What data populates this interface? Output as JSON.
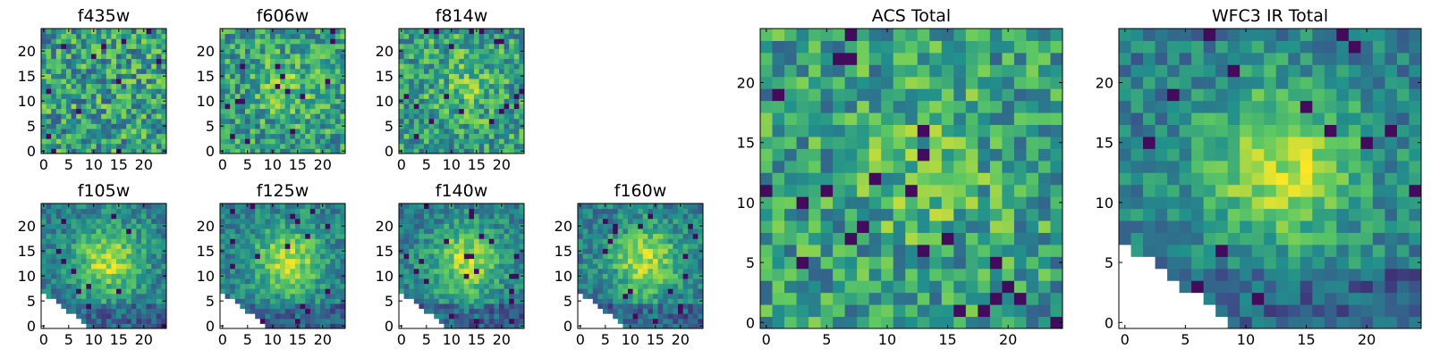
{
  "figure": {
    "colormap": [
      "#440154",
      "#3b528b",
      "#21918c",
      "#5ec962",
      "#fde725"
    ],
    "mask_color": "#ffffff"
  },
  "chart_data": [
    {
      "type": "heatmap",
      "title": "f435w",
      "x_ticks": [
        0,
        5,
        10,
        15,
        20
      ],
      "y_ticks": [
        0,
        5,
        10,
        15,
        20
      ],
      "xlim": [
        -0.5,
        24.5
      ],
      "ylim": [
        -0.5,
        24.5
      ],
      "grid_size": [
        25,
        25
      ],
      "pattern": "noise",
      "masked_corner": "none"
    },
    {
      "type": "heatmap",
      "title": "f606w",
      "x_ticks": [
        0,
        5,
        10,
        15,
        20
      ],
      "y_ticks": [
        0,
        5,
        10,
        15,
        20
      ],
      "xlim": [
        -0.5,
        24.5
      ],
      "ylim": [
        -0.5,
        24.5
      ],
      "grid_size": [
        25,
        25
      ],
      "pattern": "noise-with-faint-center",
      "masked_corner": "none"
    },
    {
      "type": "heatmap",
      "title": "f814w",
      "x_ticks": [
        0,
        5,
        10,
        15,
        20
      ],
      "y_ticks": [
        0,
        5,
        10,
        15,
        20
      ],
      "xlim": [
        -0.5,
        24.5
      ],
      "ylim": [
        -0.5,
        24.5
      ],
      "grid_size": [
        25,
        25
      ],
      "pattern": "noise-with-faint-center",
      "masked_corner": "none"
    },
    {
      "type": "heatmap",
      "title": "f105w",
      "x_ticks": [
        0,
        5,
        10,
        15,
        20
      ],
      "y_ticks": [
        0,
        5,
        10,
        15,
        20
      ],
      "xlim": [
        -0.5,
        24.5
      ],
      "ylim": [
        -0.5,
        24.5
      ],
      "grid_size": [
        25,
        25
      ],
      "pattern": "central-source",
      "masked_corner": "bottom-left"
    },
    {
      "type": "heatmap",
      "title": "f125w",
      "x_ticks": [
        0,
        5,
        10,
        15,
        20
      ],
      "y_ticks": [
        0,
        5,
        10,
        15,
        20
      ],
      "xlim": [
        -0.5,
        24.5
      ],
      "ylim": [
        -0.5,
        24.5
      ],
      "grid_size": [
        25,
        25
      ],
      "pattern": "central-source",
      "masked_corner": "bottom-left"
    },
    {
      "type": "heatmap",
      "title": "f140w",
      "x_ticks": [
        0,
        5,
        10,
        15,
        20
      ],
      "y_ticks": [
        0,
        5,
        10,
        15,
        20
      ],
      "xlim": [
        -0.5,
        24.5
      ],
      "ylim": [
        -0.5,
        24.5
      ],
      "grid_size": [
        25,
        25
      ],
      "pattern": "central-source",
      "masked_corner": "bottom-left"
    },
    {
      "type": "heatmap",
      "title": "f160w",
      "x_ticks": [
        0,
        5,
        10,
        15,
        20
      ],
      "y_ticks": [
        0,
        5,
        10,
        15,
        20
      ],
      "xlim": [
        -0.5,
        24.5
      ],
      "ylim": [
        -0.5,
        24.5
      ],
      "grid_size": [
        25,
        25
      ],
      "pattern": "central-source",
      "masked_corner": "bottom-left"
    },
    {
      "type": "heatmap",
      "title": "ACS Total",
      "x_ticks": [
        0,
        5,
        10,
        15,
        20
      ],
      "y_ticks": [
        0,
        5,
        10,
        15,
        20
      ],
      "xlim": [
        -0.5,
        24.5
      ],
      "ylim": [
        -0.5,
        24.5
      ],
      "grid_size": [
        25,
        25
      ],
      "pattern": "noise-with-faint-center",
      "masked_corner": "none"
    },
    {
      "type": "heatmap",
      "title": "WFC3 IR Total",
      "x_ticks": [
        0,
        5,
        10,
        15,
        20
      ],
      "y_ticks": [
        0,
        5,
        10,
        15,
        20
      ],
      "xlim": [
        -0.5,
        24.5
      ],
      "ylim": [
        -0.5,
        24.5
      ],
      "grid_size": [
        25,
        25
      ],
      "pattern": "central-source",
      "masked_corner": "bottom-left"
    }
  ]
}
